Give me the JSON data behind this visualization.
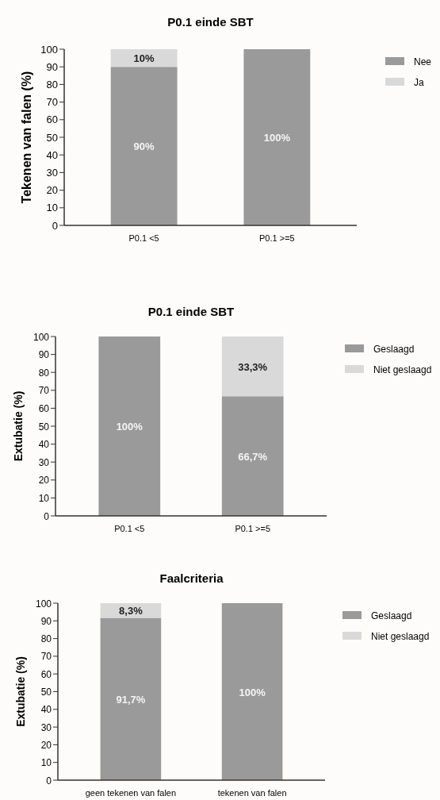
{
  "chart_data": [
    {
      "type": "bar",
      "title": "P0.1 einde SBT",
      "ylabel": "Tekenen van falen (%)",
      "categories": [
        "P0.1 <5",
        "P0.1 >=5"
      ],
      "stacked": true,
      "legend": "top right",
      "ylim": [
        0,
        100
      ],
      "yticks": [
        0,
        10,
        20,
        30,
        40,
        50,
        60,
        70,
        80,
        90,
        100
      ],
      "grid": false,
      "series": [
        {
          "name": "Nee",
          "color": "#999a99",
          "values": [
            90,
            100
          ],
          "value_labels": [
            "90%",
            "100%"
          ]
        },
        {
          "name": "Ja",
          "color": "#d9d9d9",
          "values": [
            10,
            0
          ],
          "value_labels": [
            "10%",
            null
          ]
        }
      ]
    },
    {
      "type": "bar",
      "title": "P0.1 einde SBT",
      "ylabel": "Extubatie (%)",
      "categories": [
        "P0.1 <5",
        "P0.1 >=5"
      ],
      "stacked": true,
      "legend": "top right",
      "ylim": [
        0,
        100
      ],
      "yticks": [
        0,
        10,
        20,
        30,
        40,
        50,
        60,
        70,
        80,
        90,
        100
      ],
      "grid": false,
      "series": [
        {
          "name": "Geslaagd",
          "color": "#999a99",
          "values": [
            100,
            66.7
          ],
          "value_labels": [
            "100%",
            "66,7%"
          ]
        },
        {
          "name": "Niet geslaagd",
          "color": "#d9d9d9",
          "values": [
            0,
            33.3
          ],
          "value_labels": [
            null,
            "33,3%"
          ]
        }
      ]
    },
    {
      "type": "bar",
      "title": "Faalcriteria",
      "ylabel": "Extubatie (%)",
      "categories": [
        "geen tekenen van falen",
        "tekenen van falen"
      ],
      "stacked": true,
      "legend": "top right",
      "ylim": [
        0,
        100
      ],
      "yticks": [
        0,
        10,
        20,
        30,
        40,
        50,
        60,
        70,
        80,
        90,
        100
      ],
      "grid": false,
      "series": [
        {
          "name": "Geslaagd",
          "color": "#999a99",
          "values": [
            91.7,
            100
          ],
          "value_labels": [
            "91,7%",
            "100%"
          ]
        },
        {
          "name": "Niet geslaagd",
          "color": "#d9d9d9",
          "values": [
            8.3,
            0
          ],
          "value_labels": [
            "8,3%",
            null
          ]
        }
      ]
    }
  ]
}
